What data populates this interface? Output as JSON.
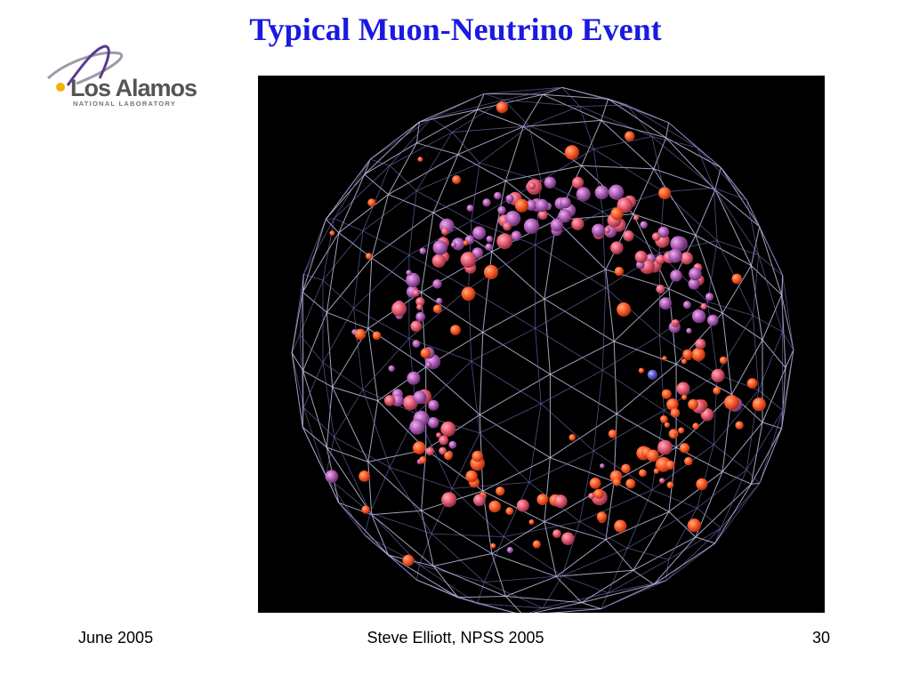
{
  "header": {
    "title": "Typical Muon-Neutrino Event"
  },
  "logo": {
    "name": "Los Alamos",
    "subtitle": "NATIONAL LABORATORY"
  },
  "footer": {
    "date": "June 2005",
    "author": "Steve Elliott, NPSS 2005",
    "page": "30"
  }
}
